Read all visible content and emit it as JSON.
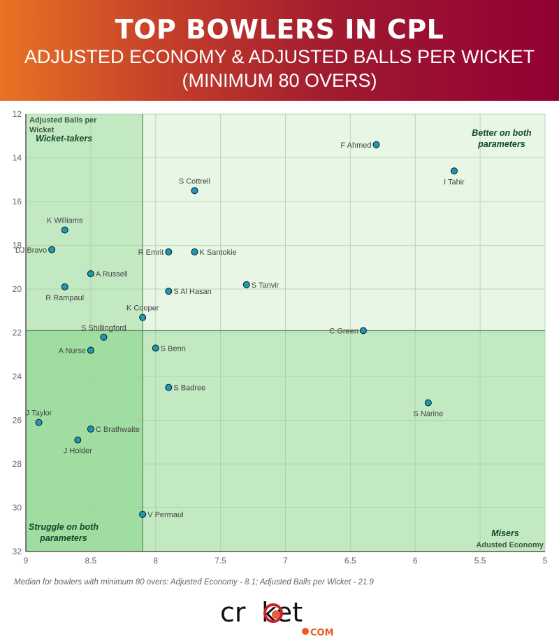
{
  "header": {
    "title": "TOP BOWLERS IN CPL",
    "subtitle_line1": "ADJUSTED ECONOMY & ADJUSTED BALLS PER WICKET",
    "subtitle_line2": "(MINIMUM 80 OVERS)"
  },
  "chart_data": {
    "type": "scatter",
    "xlabel": "Adusted Economy",
    "ylabel": "Adjusted Balls per Wicket",
    "xlim": [
      9,
      5
    ],
    "ylim": [
      32,
      12
    ],
    "x_reversed": true,
    "y_reversed": true,
    "grid": true,
    "xticks": [
      "9",
      "8.5",
      "8",
      "7.5",
      "7",
      "6.5",
      "6",
      "5.5",
      "5"
    ],
    "yticks": [
      "12",
      "14",
      "16",
      "18",
      "20",
      "22",
      "24",
      "26",
      "28",
      "30",
      "32"
    ],
    "median": {
      "x": 8.1,
      "y": 21.9
    },
    "quadrant_labels": {
      "top_left": "Wicket-takers",
      "top_right": "Better on both parameters",
      "bottom_left": "Struggle on both parameters",
      "bottom_right": "Misers"
    },
    "quadrant_colors": {
      "top_left": "#c3e9c3",
      "top_right": "#e7f6e5",
      "bottom_left": "#a0dda0",
      "bottom_right": "#c3e9c3"
    },
    "point_color": "#1b9aa8",
    "points": [
      {
        "name": "F Ahmed",
        "x": 6.3,
        "y": 13.4,
        "label_pos": "left"
      },
      {
        "name": "I Tahir",
        "x": 5.7,
        "y": 14.6,
        "label_pos": "below"
      },
      {
        "name": "S Cottrell",
        "x": 7.7,
        "y": 15.5,
        "label_pos": "above"
      },
      {
        "name": "K Williams",
        "x": 8.7,
        "y": 17.3,
        "label_pos": "above"
      },
      {
        "name": "DJ Bravo",
        "x": 8.8,
        "y": 18.2,
        "label_pos": "left"
      },
      {
        "name": "R Emrit",
        "x": 7.9,
        "y": 18.3,
        "label_pos": "left"
      },
      {
        "name": "K Santokie",
        "x": 7.7,
        "y": 18.3,
        "label_pos": "right"
      },
      {
        "name": "A Russell",
        "x": 8.5,
        "y": 19.3,
        "label_pos": "right"
      },
      {
        "name": "S Tanvir",
        "x": 7.3,
        "y": 19.8,
        "label_pos": "right"
      },
      {
        "name": "R Rampaul",
        "x": 8.7,
        "y": 19.9,
        "label_pos": "below"
      },
      {
        "name": "S Al Hasan",
        "x": 7.9,
        "y": 20.1,
        "label_pos": "right"
      },
      {
        "name": "K Cooper",
        "x": 8.1,
        "y": 21.3,
        "label_pos": "above"
      },
      {
        "name": "C Green",
        "x": 6.4,
        "y": 21.9,
        "label_pos": "left"
      },
      {
        "name": "S Shillingford",
        "x": 8.4,
        "y": 22.2,
        "label_pos": "above"
      },
      {
        "name": "S Benn",
        "x": 8.0,
        "y": 22.7,
        "label_pos": "right"
      },
      {
        "name": "A Nurse",
        "x": 8.5,
        "y": 22.8,
        "label_pos": "left"
      },
      {
        "name": "S Badree",
        "x": 7.9,
        "y": 24.5,
        "label_pos": "right"
      },
      {
        "name": "S Narine",
        "x": 5.9,
        "y": 25.2,
        "label_pos": "below"
      },
      {
        "name": "J Taylor",
        "x": 8.9,
        "y": 26.1,
        "label_pos": "above"
      },
      {
        "name": "C Brathwaite",
        "x": 8.5,
        "y": 26.4,
        "label_pos": "right"
      },
      {
        "name": "J Holder",
        "x": 8.6,
        "y": 26.9,
        "label_pos": "below"
      },
      {
        "name": "V Permaul",
        "x": 8.1,
        "y": 30.3,
        "label_pos": "right"
      }
    ]
  },
  "footnote": "Median for bowlers with minimum 80 overs: Adjusted Economy - 8.1; Adjusted Balls per Wicket - 21.9",
  "logo": {
    "text": "cricket",
    "suffix": "COM"
  }
}
